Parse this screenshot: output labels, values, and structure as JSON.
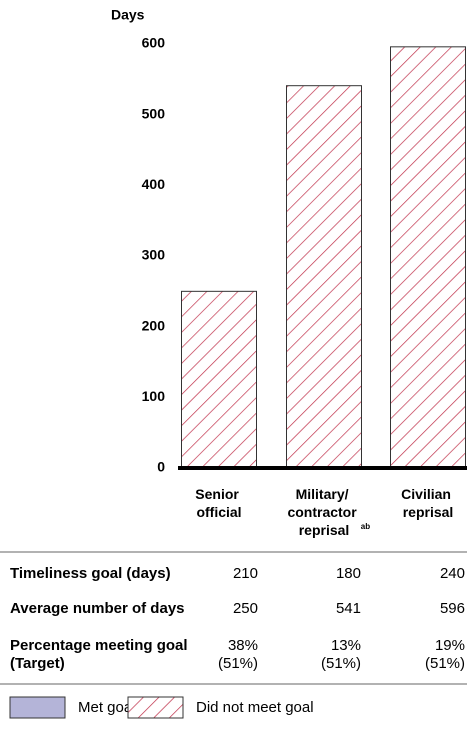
{
  "chart_data": {
    "type": "bar",
    "y_label": "Days",
    "categories": [
      "Senior official",
      "Military/ contractor reprisal",
      "Civilian reprisal"
    ],
    "category_superscripts": {
      "1": "ab"
    },
    "values": [
      250,
      541,
      596
    ],
    "color": "#c0304a",
    "pattern": "hatch",
    "ylim": [
      0,
      600
    ],
    "yticks": [
      0,
      100,
      200,
      300,
      400,
      500,
      600
    ],
    "grid": false
  },
  "table": {
    "rows": [
      {
        "label": [
          "Timeliness goal (days)"
        ],
        "cells": [
          [
            "210"
          ],
          [
            "180"
          ],
          [
            "240"
          ]
        ]
      },
      {
        "label": [
          "Average number of days"
        ],
        "cells": [
          [
            "250"
          ],
          [
            "541"
          ],
          [
            "596"
          ]
        ]
      },
      {
        "label": [
          "Percentage meeting goal",
          "(Target)"
        ],
        "cells": [
          [
            "38%",
            "(51%)"
          ],
          [
            "13%",
            "(51%)"
          ],
          [
            "19%",
            "(51%)"
          ]
        ]
      }
    ]
  },
  "legend": [
    {
      "name": "Met goal",
      "color": "#b4b4d8"
    },
    {
      "name": "Did not meet goal",
      "color": "#c0304a",
      "pattern": "hatch"
    }
  ]
}
